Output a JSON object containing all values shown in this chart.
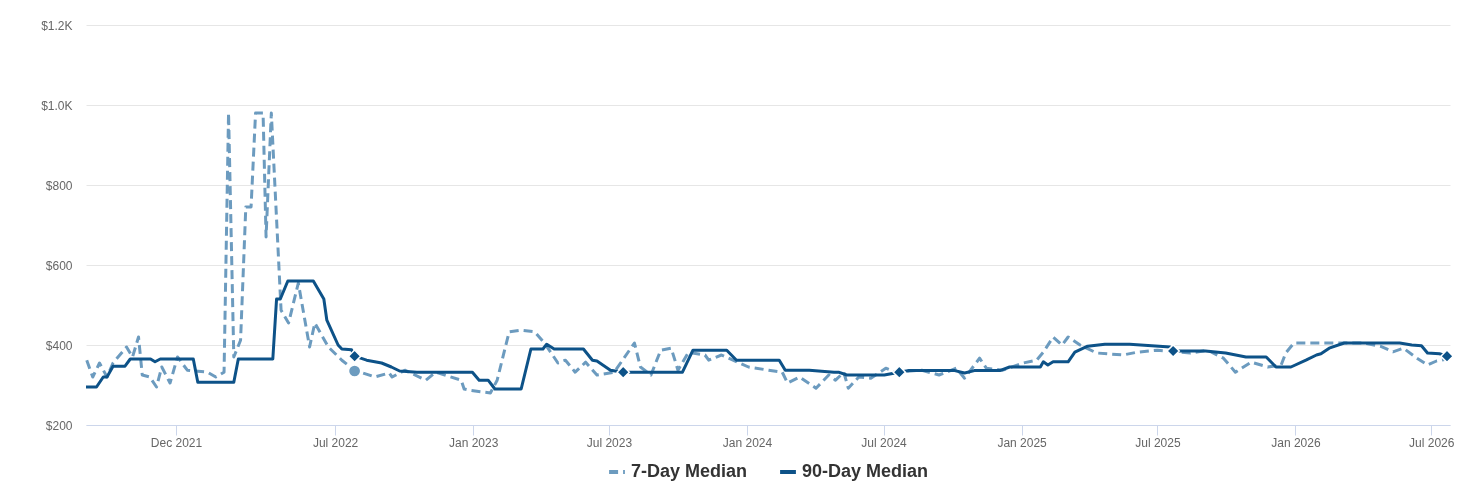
{
  "chart_data": {
    "type": "line",
    "xlim": [
      "2021-08-03",
      "2026-07-26"
    ],
    "xticks": [
      {
        "value": "2021-12-01",
        "label": "Dec 2021"
      },
      {
        "value": "2022-07-01",
        "label": "Jul 2022"
      },
      {
        "value": "2023-01-01",
        "label": "Jan 2023"
      },
      {
        "value": "2023-07-01",
        "label": "Jul 2023"
      },
      {
        "value": "2024-01-01",
        "label": "Jan 2024"
      },
      {
        "value": "2024-07-01",
        "label": "Jul 2024"
      },
      {
        "value": "2025-01-01",
        "label": "Jan 2025"
      },
      {
        "value": "2025-07-01",
        "label": "Jul 2025"
      },
      {
        "value": "2026-01-01",
        "label": "Jan 2026"
      },
      {
        "value": "2026-07-01",
        "label": "Jul 2026"
      }
    ],
    "ylim": [
      200,
      1200
    ],
    "yticks": [
      {
        "value": 200,
        "label": "$200"
      },
      {
        "value": 400,
        "label": "$400"
      },
      {
        "value": 600,
        "label": "$600"
      },
      {
        "value": 800,
        "label": "$800"
      },
      {
        "value": 1000,
        "label": "$1.0K"
      },
      {
        "value": 1200,
        "label": "$1.2K"
      }
    ],
    "grid": "y",
    "legend": "bottom",
    "series": [
      {
        "name": "7-Day Median",
        "color": "#6c9bbf",
        "line_style": "dashed",
        "x": [
          "2021-08-04",
          "2021-08-12",
          "2021-08-21",
          "2021-08-31",
          "2021-09-08",
          "2021-09-26",
          "2021-10-04",
          "2021-10-12",
          "2021-10-17",
          "2021-10-27",
          "2021-11-05",
          "2021-11-12",
          "2021-11-23",
          "2021-12-03",
          "2021-12-16",
          "2022-01-12",
          "2022-01-23",
          "2022-02-03",
          "2022-02-09",
          "2022-02-16",
          "2022-02-25",
          "2022-03-04",
          "2022-03-11",
          "2022-03-17",
          "2022-03-27",
          "2022-03-31",
          "2022-04-07",
          "2022-04-20",
          "2022-04-30",
          "2022-05-13",
          "2022-05-28",
          "2022-06-04",
          "2022-06-22",
          "2022-07-10",
          "2022-07-27",
          "2022-08-23",
          "2022-09-11",
          "2022-09-15",
          "2022-10-02",
          "2022-10-30",
          "2022-11-12",
          "2022-12-16",
          "2022-12-20",
          "2022-12-27",
          "2023-01-24",
          "2023-02-02",
          "2023-02-18",
          "2023-03-05",
          "2023-03-24",
          "2023-04-06",
          "2023-04-24",
          "2023-05-04",
          "2023-05-17",
          "2023-05-31",
          "2023-06-15",
          "2023-07-08",
          "2023-08-04",
          "2023-08-12",
          "2023-08-26",
          "2023-09-08",
          "2023-09-22",
          "2023-10-01",
          "2023-10-15",
          "2023-11-06",
          "2023-11-11",
          "2023-11-28",
          "2024-01-03",
          "2024-01-30",
          "2024-02-17",
          "2024-02-24",
          "2024-03-11",
          "2024-04-02",
          "2024-04-19",
          "2024-04-28",
          "2024-05-09",
          "2024-05-15",
          "2024-05-29",
          "2024-06-14",
          "2024-07-04",
          "2024-07-17",
          "2024-08-21",
          "2024-09-13",
          "2024-10-06",
          "2024-10-17",
          "2024-11-06",
          "2024-11-15",
          "2024-12-07",
          "2025-01-03",
          "2025-01-21",
          "2025-01-30",
          "2025-02-12",
          "2025-02-24",
          "2025-03-04",
          "2025-03-20",
          "2025-04-11",
          "2025-05-16",
          "2025-06-04",
          "2025-07-01",
          "2025-08-14",
          "2025-09-06",
          "2025-09-27",
          "2025-10-13",
          "2025-11-03",
          "2025-11-25",
          "2025-12-13",
          "2025-12-19",
          "2025-12-30",
          "2026-01-17",
          "2026-02-17",
          "2026-04-01",
          "2026-04-24",
          "2026-05-11",
          "2026-05-25",
          "2026-06-12",
          "2026-06-26",
          "2026-07-08",
          "2026-07-22"
        ],
        "values": [
          362,
          320,
          355,
          320,
          355,
          395,
          370,
          420,
          325,
          320,
          295,
          345,
          305,
          370,
          337,
          332,
          320,
          332,
          980,
          370,
          412,
          745,
          745,
          980,
          980,
          670,
          980,
          487,
          455,
          555,
          395,
          455,
          395,
          362,
          337,
          320,
          330,
          320,
          337,
          312,
          332,
          312,
          290,
          287,
          280,
          312,
          433,
          437,
          433,
          405,
          355,
          362,
          332,
          357,
          325,
          332,
          405,
          345,
          325,
          387,
          392,
          337,
          382,
          375,
          362,
          375,
          345,
          337,
          332,
          305,
          320,
          292,
          325,
          312,
          332,
          292,
          320,
          317,
          342,
          332,
          337,
          325,
          342,
          317,
          367,
          342,
          337,
          355,
          362,
          382,
          420,
          400,
          420,
          400,
          380,
          375,
          382,
          387,
          380,
          387,
          367,
          332,
          357,
          345,
          350,
          380,
          405,
          405,
          405,
          405,
          397,
          383,
          392,
          367,
          350,
          360,
          365
        ]
      },
      {
        "name": "90-Day Median",
        "color": "#0d5288",
        "line_style": "solid",
        "x": [
          "2021-08-03",
          "2021-08-17",
          "2021-08-26",
          "2021-08-31",
          "2021-09-08",
          "2021-09-24",
          "2021-10-01",
          "2021-10-28",
          "2021-11-03",
          "2021-11-10",
          "2021-12-24",
          "2021-12-30",
          "2022-02-16",
          "2022-02-22",
          "2022-04-09",
          "2022-04-14",
          "2022-04-19",
          "2022-04-29",
          "2022-06-02",
          "2022-06-16",
          "2022-06-20",
          "2022-07-05",
          "2022-07-10",
          "2022-07-23",
          "2022-07-27",
          "2022-08-12",
          "2022-09-01",
          "2022-09-14",
          "2022-09-25",
          "2022-10-18",
          "2022-12-31",
          "2023-01-09",
          "2023-01-21",
          "2023-01-30",
          "2023-03-06",
          "2023-03-19",
          "2023-04-04",
          "2023-04-09",
          "2023-04-19",
          "2023-05-28",
          "2023-06-09",
          "2023-06-15",
          "2023-07-03",
          "2023-07-20",
          "2023-10-07",
          "2023-10-21",
          "2023-12-05",
          "2023-12-18",
          "2024-02-13",
          "2024-02-21",
          "2024-03-24",
          "2024-04-26",
          "2024-05-02",
          "2024-05-13",
          "2024-07-02",
          "2024-07-22",
          "2024-08-04",
          "2024-10-04",
          "2024-10-17",
          "2024-10-30",
          "2024-12-03",
          "2024-12-16",
          "2025-01-26",
          "2025-01-30",
          "2025-02-05",
          "2025-02-12",
          "2025-03-04",
          "2025-03-13",
          "2025-03-30",
          "2025-04-22",
          "2025-05-25",
          "2025-07-18",
          "2025-07-22",
          "2025-09-03",
          "2025-09-30",
          "2025-10-27",
          "2025-11-23",
          "2025-12-06",
          "2025-12-26",
          "2026-01-15",
          "2026-01-29",
          "2026-02-04",
          "2026-02-15",
          "2026-03-07",
          "2026-05-20",
          "2026-06-05",
          "2026-06-18",
          "2026-06-26",
          "2026-07-12",
          "2026-07-22"
        ],
        "values": [
          295,
          295,
          320,
          320,
          347,
          347,
          365,
          365,
          358,
          365,
          365,
          307,
          307,
          365,
          365,
          515,
          515,
          560,
          560,
          515,
          462,
          400,
          390,
          388,
          372,
          362,
          355,
          345,
          335,
          332,
          332,
          312,
          312,
          290,
          290,
          390,
          390,
          402,
          390,
          390,
          362,
          360,
          337,
          332,
          332,
          387,
          387,
          362,
          362,
          337,
          337,
          332,
          332,
          325,
          325,
          332,
          336,
          336,
          330,
          336,
          336,
          345,
          345,
          358,
          350,
          358,
          358,
          382,
          397,
          402,
          402,
          395,
          385,
          385,
          380,
          370,
          370,
          345,
          345,
          362,
          375,
          378,
          392,
          405,
          405,
          400,
          398,
          380,
          378,
          372
        ]
      },
      {
        "type": "scatter",
        "marker": "circle",
        "color": "#6c9bbf",
        "x": [
          "2022-07-27"
        ],
        "values": [
          335
        ]
      },
      {
        "type": "scatter",
        "marker": "diamond",
        "color": "#0d5288",
        "x": [
          "2022-07-27",
          "2023-07-20",
          "2024-07-22",
          "2025-07-22",
          "2026-07-22"
        ],
        "values": [
          372,
          332,
          332,
          385,
          372
        ]
      }
    ]
  }
}
